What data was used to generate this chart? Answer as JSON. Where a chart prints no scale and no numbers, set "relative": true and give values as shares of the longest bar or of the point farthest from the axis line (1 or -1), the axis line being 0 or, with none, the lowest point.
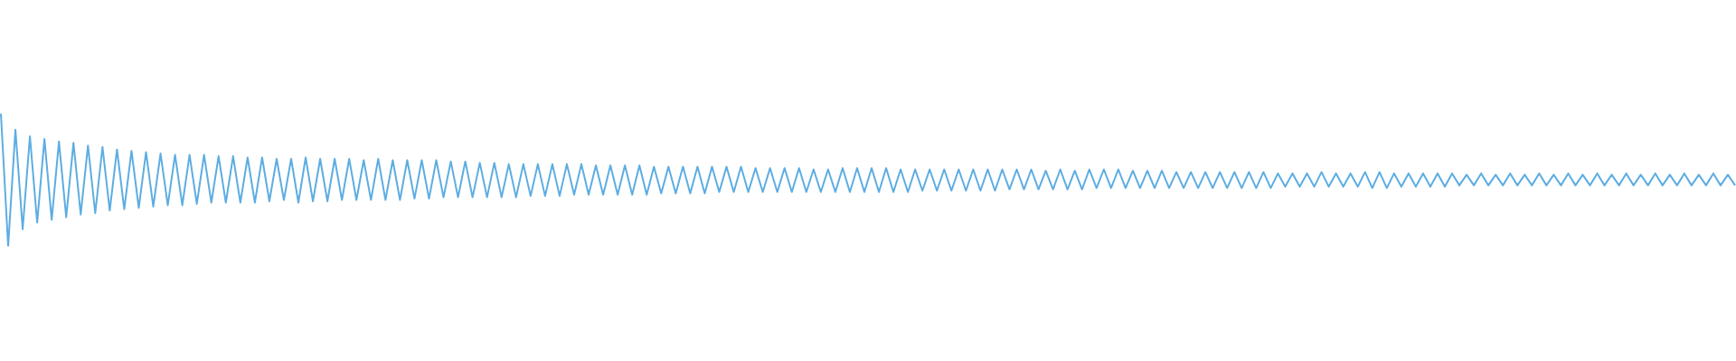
{
  "chart_data": {
    "type": "line",
    "relative": true,
    "color": "#5dade2",
    "categories": [
      null,
      null,
      null,
      null,
      null,
      null,
      null,
      null,
      null,
      null,
      null,
      null,
      null,
      null,
      null,
      null,
      null,
      null,
      null,
      null,
      null,
      null,
      null,
      null,
      null,
      null,
      null,
      null,
      null,
      null,
      null,
      null,
      null,
      null,
      null,
      null,
      null,
      null,
      null,
      null,
      null,
      null,
      null,
      null,
      null,
      null,
      null,
      null,
      null,
      null,
      null,
      null,
      null,
      null,
      null,
      null,
      null,
      null,
      null,
      null,
      null,
      null,
      null,
      null,
      null,
      null,
      null,
      null,
      null,
      null,
      null,
      null,
      null,
      null,
      null,
      null,
      null,
      null,
      null,
      null,
      null,
      null,
      null,
      null,
      null,
      null,
      null,
      null,
      null,
      null,
      null,
      null,
      null,
      null,
      null,
      null,
      null,
      null,
      null,
      null,
      null,
      null,
      null,
      null,
      null,
      null,
      null,
      null,
      null,
      null,
      null,
      null,
      null,
      null,
      null,
      null,
      null,
      null,
      null,
      null,
      null,
      null,
      null,
      null,
      null,
      null,
      null,
      null,
      null,
      null,
      null,
      null,
      null,
      null,
      null,
      null,
      null,
      null,
      null,
      null,
      null,
      null,
      null,
      null,
      null,
      null,
      null,
      null,
      null,
      null,
      null,
      null,
      null,
      null,
      null,
      null,
      null,
      null,
      null,
      null,
      null,
      null,
      null,
      null,
      null,
      null,
      null,
      null,
      null,
      null,
      null,
      null,
      null,
      null,
      null,
      null,
      null,
      null,
      null,
      null,
      null,
      null,
      null,
      null,
      null,
      null,
      null,
      null,
      null,
      null,
      null,
      null,
      null,
      null,
      null,
      null,
      null,
      null,
      null,
      null,
      null,
      null,
      null,
      null,
      null,
      null,
      null,
      null,
      null,
      null,
      null,
      null,
      null,
      null,
      null,
      null,
      null,
      null,
      null,
      null,
      null,
      null,
      null,
      null,
      null,
      null,
      null,
      null,
      null,
      null,
      null,
      null,
      null,
      null,
      null,
      null,
      null,
      null,
      null,
      null
    ],
    "values": [
      1,
      0,
      0.88,
      0.13,
      0.83,
      0.18,
      0.81,
      0.2,
      0.79,
      0.22,
      0.78,
      0.24,
      0.76,
      0.25,
      0.75,
      0.27,
      0.73,
      0.28,
      0.72,
      0.29,
      0.71,
      0.3,
      0.7,
      0.31,
      0.69,
      0.31,
      0.69,
      0.32,
      0.69,
      0.33,
      0.68,
      0.33,
      0.68,
      0.33,
      0.67,
      0.33,
      0.67,
      0.34,
      0.66,
      0.35,
      0.66,
      0.33,
      0.67,
      0.34,
      0.66,
      0.34,
      0.66,
      0.35,
      0.66,
      0.35,
      0.65,
      0.35,
      0.66,
      0.35,
      0.65,
      0.35,
      0.65,
      0.36,
      0.65,
      0.36,
      0.65,
      0.37,
      0.64,
      0.37,
      0.64,
      0.37,
      0.63,
      0.37,
      0.63,
      0.37,
      0.62,
      0.37,
      0.62,
      0.38,
      0.62,
      0.38,
      0.62,
      0.38,
      0.62,
      0.39,
      0.62,
      0.39,
      0.61,
      0.39,
      0.61,
      0.39,
      0.61,
      0.39,
      0.61,
      0.39,
      0.6,
      0.4,
      0.6,
      0.4,
      0.6,
      0.4,
      0.6,
      0.4,
      0.6,
      0.41,
      0.6,
      0.41,
      0.6,
      0.41,
      0.59,
      0.41,
      0.59,
      0.41,
      0.59,
      0.41,
      0.59,
      0.41,
      0.58,
      0.41,
      0.58,
      0.41,
      0.59,
      0.41,
      0.59,
      0.41,
      0.59,
      0.41,
      0.59,
      0.41,
      0.58,
      0.41,
      0.58,
      0.42,
      0.58,
      0.42,
      0.58,
      0.42,
      0.58,
      0.42,
      0.58,
      0.42,
      0.58,
      0.42,
      0.58,
      0.43,
      0.58,
      0.43,
      0.58,
      0.43,
      0.57,
      0.43,
      0.58,
      0.43,
      0.57,
      0.43,
      0.58,
      0.44,
      0.58,
      0.44,
      0.58,
      0.44,
      0.57,
      0.44,
      0.57,
      0.44,
      0.57,
      0.44,
      0.56,
      0.44,
      0.56,
      0.44,
      0.56,
      0.44,
      0.56,
      0.44,
      0.56,
      0.44,
      0.56,
      0.44,
      0.56,
      0.44,
      0.55,
      0.45,
      0.55,
      0.45,
      0.55,
      0.45,
      0.56,
      0.45,
      0.55,
      0.45,
      0.55,
      0.45,
      0.56,
      0.44,
      0.56,
      0.44,
      0.55,
      0.45,
      0.55,
      0.45,
      0.55,
      0.45,
      0.55,
      0.45,
      0.55,
      0.46,
      0.54,
      0.46,
      0.55,
      0.46,
      0.54,
      0.46,
      0.55,
      0.46,
      0.54,
      0.46,
      0.55,
      0.46,
      0.54,
      0.46,
      0.55,
      0.46,
      0.54,
      0.46,
      0.55,
      0.46,
      0.54,
      0.46,
      0.55,
      0.46,
      0.54,
      0.46,
      0.55,
      0.46,
      0.54,
      0.46,
      0.55,
      0.46,
      0.54,
      0.46,
      0.55,
      0.46,
      0.54,
      0.46
    ]
  }
}
